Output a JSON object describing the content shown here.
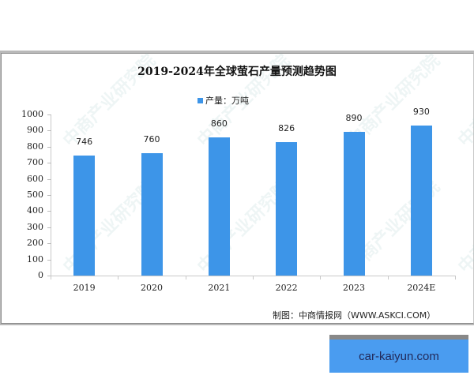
{
  "chart_data": {
    "type": "bar",
    "title": "2019-2024年全球萤石产量预测趋势图",
    "legend": [
      "产量：万吨"
    ],
    "categories": [
      "2019",
      "2020",
      "2021",
      "2022",
      "2023",
      "2024E"
    ],
    "series": [
      {
        "name": "产量：万吨",
        "values": [
          746,
          760,
          860,
          826,
          890,
          930
        ],
        "color": "#3d95e8"
      }
    ],
    "xlabel": "",
    "ylabel": "",
    "ylim": [
      0,
      1000
    ],
    "yticks": [
      0,
      100,
      200,
      300,
      400,
      500,
      600,
      700,
      800,
      900,
      1000
    ],
    "grid": false,
    "legend_position": "top",
    "source": "制图：中商情报网（WWW.ASKCI.COM）"
  },
  "labels": {
    "title": "2019-2024年全球萤石产量预测趋势图",
    "legend": "产量：万吨",
    "yticks": [
      "0",
      "100",
      "200",
      "300",
      "400",
      "500",
      "600",
      "700",
      "800",
      "900",
      "1000"
    ],
    "categories": [
      "2019",
      "2020",
      "2021",
      "2022",
      "2023",
      "2024E"
    ],
    "values": [
      "746",
      "760",
      "860",
      "826",
      "890",
      "930"
    ],
    "source": "制图：中商情报网（WWW.ASKCI.COM）",
    "watermark": "中商产业研究院"
  },
  "badge": {
    "text": "car-kaiyun.com"
  }
}
